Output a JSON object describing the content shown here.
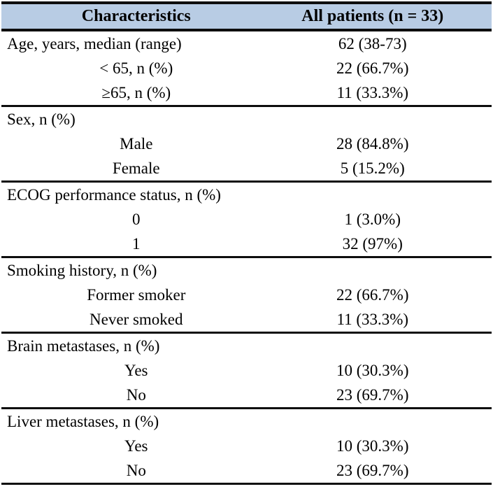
{
  "table": {
    "title_semantic": "patient-baseline-characteristics",
    "header_bg_color": "#b8cce4",
    "border_color": "#0d0d0d",
    "columns": {
      "characteristics": "Characteristics",
      "all_patients": "All patients (n = 33)"
    },
    "sections": [
      {
        "rows": [
          {
            "label": "Age, years, median (range)",
            "value": "62 (38-73)",
            "category": true
          },
          {
            "label": "< 65, n (%)",
            "value": "22 (66.7%)",
            "category": false
          },
          {
            "label": "≥65, n (%)",
            "value": "11 (33.3%)",
            "category": false
          }
        ]
      },
      {
        "rows": [
          {
            "label": "Sex, n (%)",
            "value": "",
            "category": true
          },
          {
            "label": "Male",
            "value": "28 (84.8%)",
            "category": false
          },
          {
            "label": "Female",
            "value": "5 (15.2%)",
            "category": false
          }
        ]
      },
      {
        "rows": [
          {
            "label": "ECOG performance status, n (%)",
            "value": "",
            "category": true
          },
          {
            "label": "0",
            "value": "1 (3.0%)",
            "category": false
          },
          {
            "label": "1",
            "value": "32 (97%)",
            "category": false
          }
        ]
      },
      {
        "rows": [
          {
            "label": "Smoking history, n (%)",
            "value": "",
            "category": true
          },
          {
            "label": "Former smoker",
            "value": "22 (66.7%)",
            "category": false
          },
          {
            "label": "Never smoked",
            "value": "11 (33.3%)",
            "category": false
          }
        ]
      },
      {
        "rows": [
          {
            "label": "Brain metastases, n (%)",
            "value": "",
            "category": true
          },
          {
            "label": "Yes",
            "value": "10 (30.3%)",
            "category": false
          },
          {
            "label": "No",
            "value": "23 (69.7%)",
            "category": false
          }
        ]
      },
      {
        "rows": [
          {
            "label": "Liver metastases, n (%)",
            "value": "",
            "category": true
          },
          {
            "label": "Yes",
            "value": "10 (30.3%)",
            "category": false
          },
          {
            "label": "No",
            "value": "23 (69.7%)",
            "category": false
          }
        ]
      }
    ]
  }
}
